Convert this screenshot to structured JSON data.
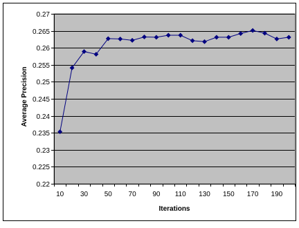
{
  "chart_data": {
    "type": "line",
    "title": "",
    "xlabel": "Iterations",
    "ylabel": "Average Precision",
    "x": [
      10,
      20,
      30,
      40,
      50,
      60,
      70,
      80,
      90,
      100,
      110,
      120,
      130,
      140,
      150,
      160,
      170,
      180,
      190,
      200
    ],
    "x_tick_labels": [
      "10",
      "30",
      "50",
      "70",
      "90",
      "110",
      "130",
      "150",
      "170",
      "190"
    ],
    "y_tick_labels": [
      "0.22",
      "0.225",
      "0.23",
      "0.235",
      "0.24",
      "0.245",
      "0.25",
      "0.255",
      "0.26",
      "0.265",
      "0.27"
    ],
    "ylim": [
      0.22,
      0.27
    ],
    "grid": "horizontal",
    "legend": "none",
    "series": [
      {
        "values": [
          0.2353,
          0.2541,
          0.2589,
          0.2581,
          0.2627,
          0.2626,
          0.2622,
          0.2632,
          0.2631,
          0.2637,
          0.2637,
          0.2621,
          0.2618,
          0.2631,
          0.2631,
          0.2642,
          0.2651,
          0.2643,
          0.2626,
          0.2631
        ],
        "color": "#000080"
      }
    ],
    "colors": {
      "plot_background": "#c0c0c0",
      "line": "#000080",
      "grid": "#000000"
    }
  }
}
